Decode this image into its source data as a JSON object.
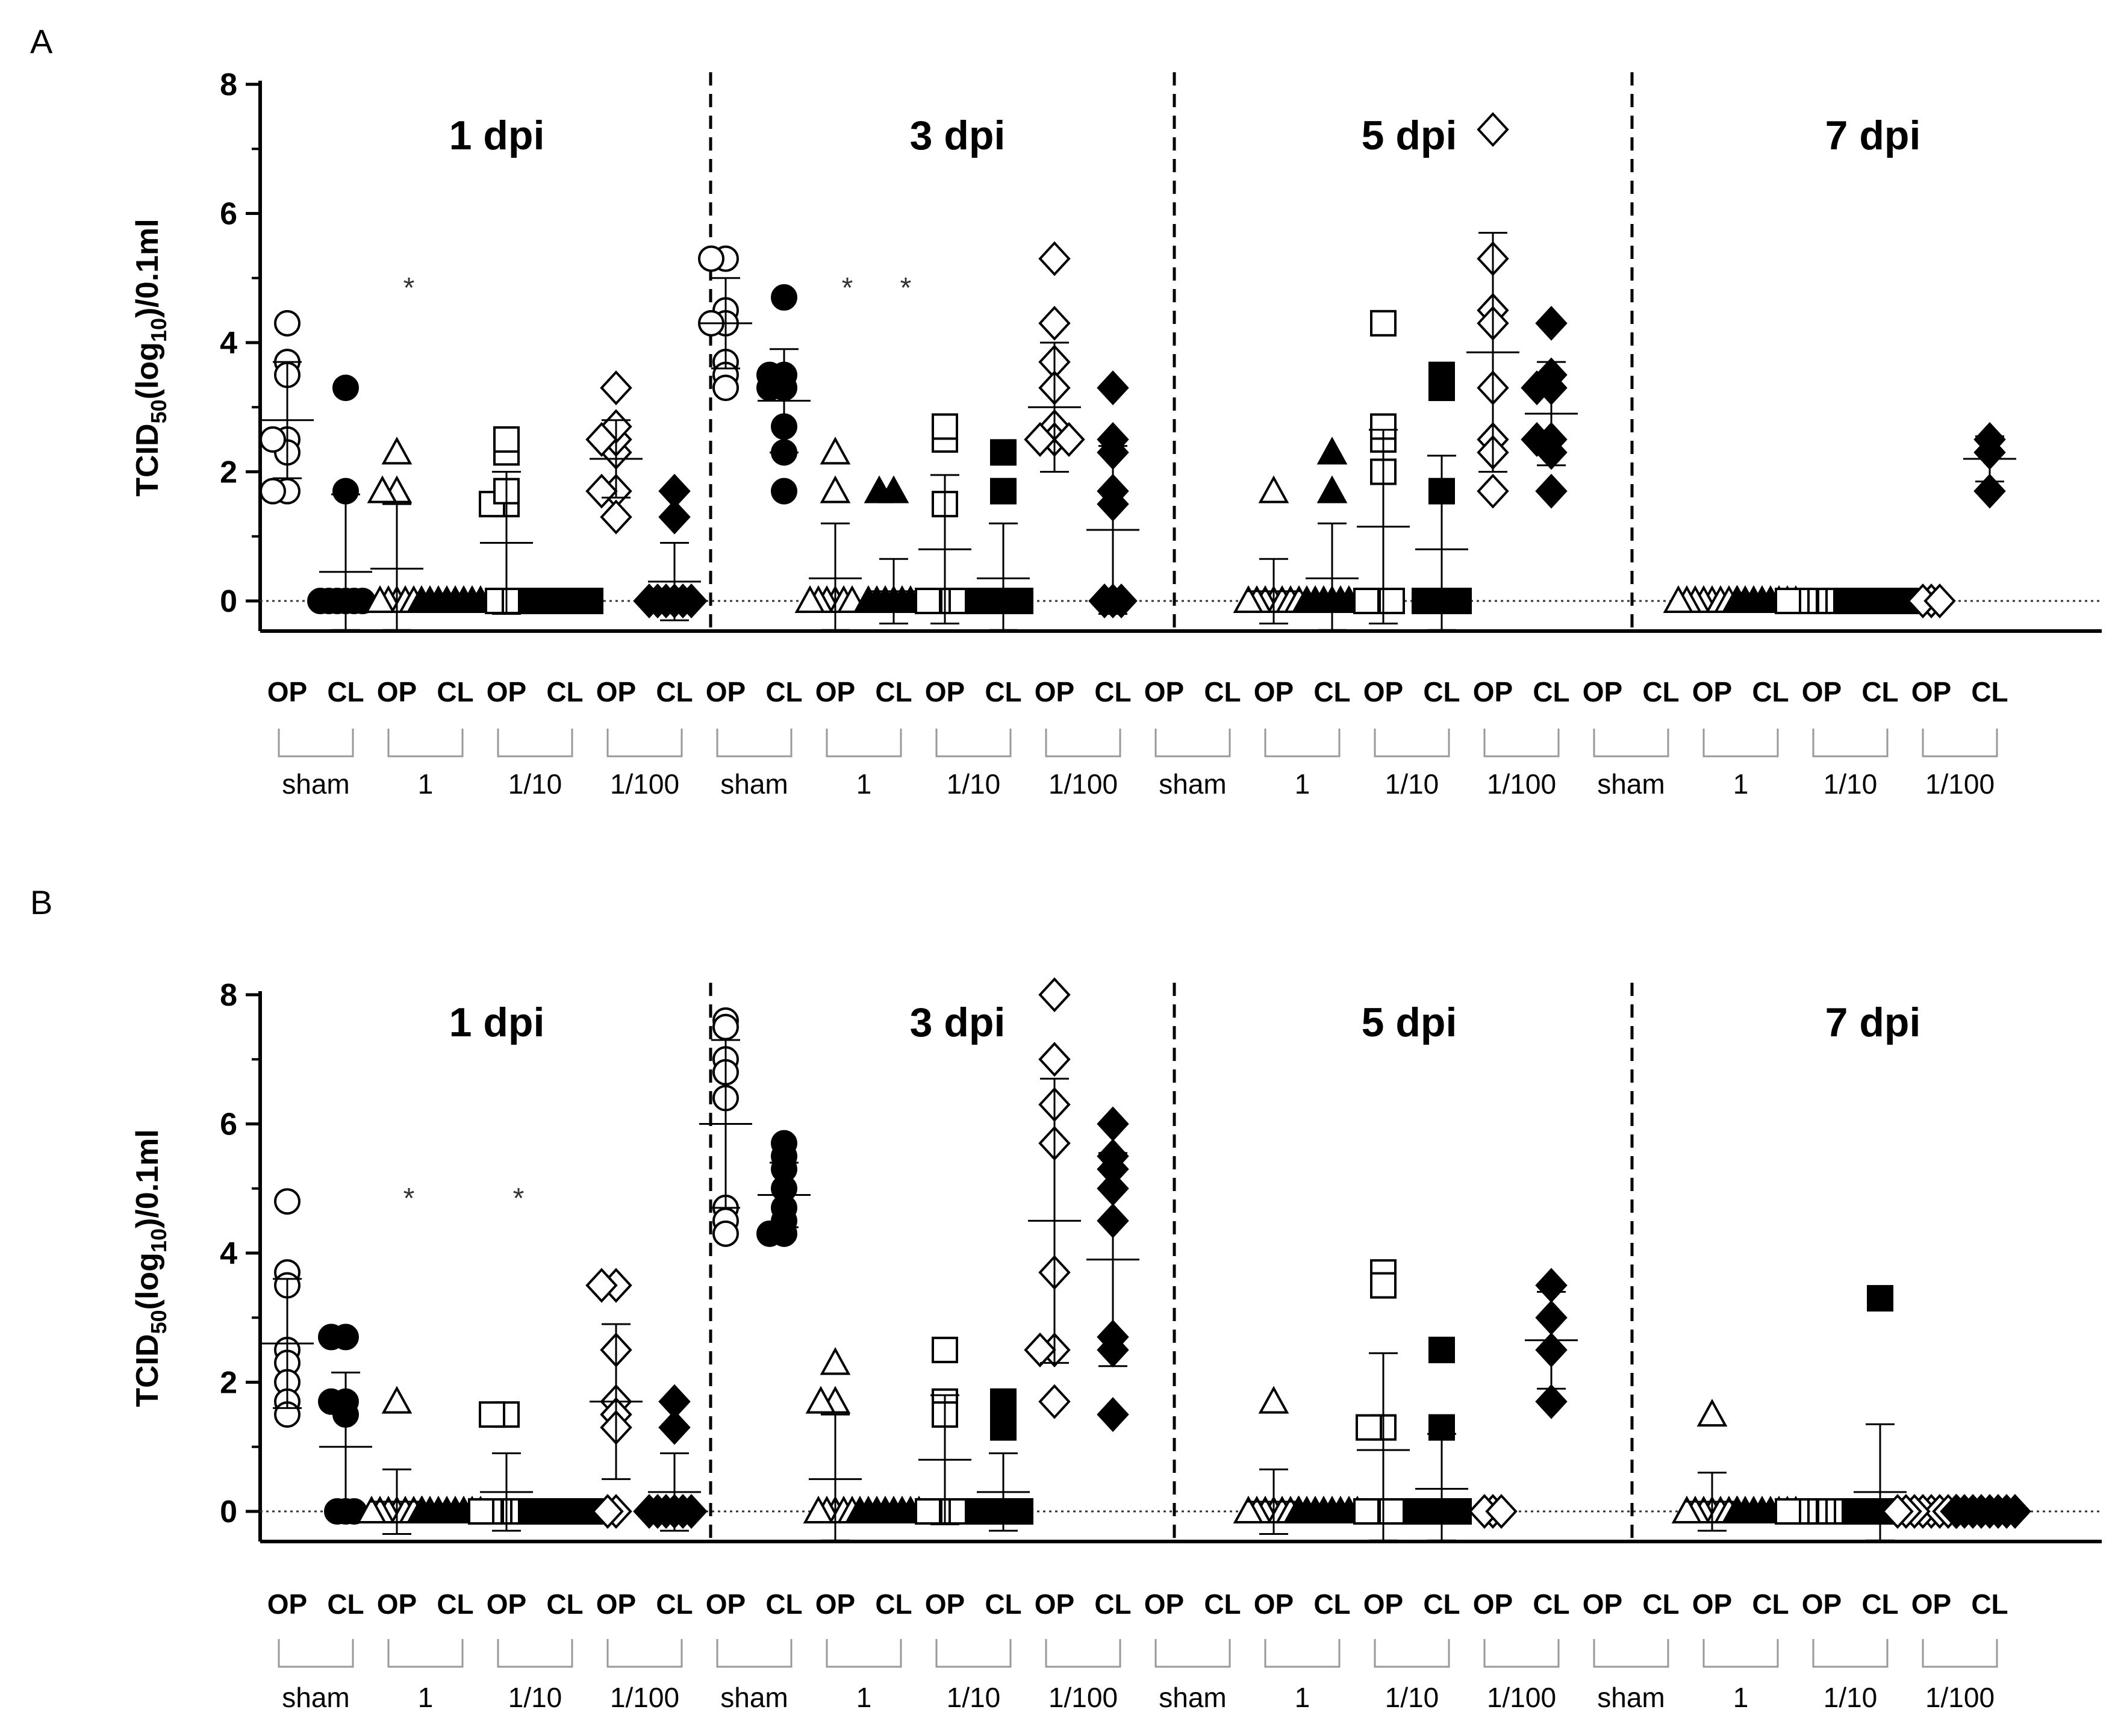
{
  "panels": [
    {
      "letter": "A",
      "ylabel": "TCID",
      "ylabel_sub": "50",
      "ylabel_mid": "(log",
      "ylabel_sub2": "10",
      "ylabel_end": ")/0.1ml"
    },
    {
      "letter": "B",
      "ylabel": "TCID",
      "ylabel_sub": "50",
      "ylabel_mid": "(log",
      "ylabel_sub2": "10",
      "ylabel_end": ")/0.1ml"
    }
  ],
  "chart_data": [
    {
      "type": "scatter",
      "panel": "A",
      "title": "",
      "ylabel": "TCID50(log10)/0.1ml",
      "ylim": [
        0,
        8
      ],
      "yticks": [
        "0",
        "2",
        "4",
        "6",
        "8"
      ],
      "timepoints": [
        "1 dpi",
        "3 dpi",
        "5 dpi",
        "7 dpi"
      ],
      "groups": [
        "sham",
        "1",
        "1/10",
        "1/100"
      ],
      "sample_labels": [
        "OP",
        "CL"
      ],
      "series": [
        {
          "name": "1 dpi sham OP",
          "values": [
            2.5,
            4.3,
            3.7,
            3.5,
            2.3,
            2.5,
            1.7,
            1.7
          ],
          "mean": 2.8,
          "sd": 0.9
        },
        {
          "name": "1 dpi sham CL",
          "values": [
            3.3,
            1.7,
            0,
            0,
            0,
            0,
            0,
            0
          ],
          "mean": 0.45,
          "sd": 1.2
        },
        {
          "name": "1 dpi 1 OP",
          "values": [
            2.3,
            1.7,
            1.7,
            0,
            0,
            0,
            0,
            0
          ],
          "mean": 0.5,
          "sd": 1.0,
          "marker": "*"
        },
        {
          "name": "1 dpi 1 CL",
          "values": [
            0,
            0,
            0,
            0,
            0,
            0,
            0,
            0
          ]
        },
        {
          "name": "1 dpi 1/10 OP",
          "values": [
            2.3,
            2.5,
            1.5,
            1.5,
            1.7,
            0,
            0,
            0
          ],
          "mean": 0.9,
          "sd": 1.1
        },
        {
          "name": "1 dpi 1/10 CL",
          "values": [
            0,
            0,
            0,
            0,
            0,
            0,
            0,
            0
          ]
        },
        {
          "name": "1 dpi 1/100 OP",
          "values": [
            2.3,
            2.5,
            3.3,
            2.7,
            2.5,
            1.7,
            1.7,
            1.3
          ],
          "mean": 2.2,
          "sd": 0.6
        },
        {
          "name": "1 dpi 1/100 CL",
          "values": [
            1.7,
            1.3,
            0,
            0,
            0,
            0,
            0,
            0
          ],
          "mean": 0.3,
          "sd": 0.6
        },
        {
          "name": "3 dpi sham OP",
          "values": [
            5.3,
            5.3,
            4.5,
            4.3,
            4.3,
            3.7,
            3.5,
            3.3
          ],
          "mean": 4.3,
          "sd": 0.7
        },
        {
          "name": "3 dpi sham CL",
          "values": [
            4.7,
            3.5,
            3.5,
            3.3,
            3.3,
            2.7,
            2.3,
            1.7
          ],
          "mean": 3.1,
          "sd": 0.8
        },
        {
          "name": "3 dpi 1 OP",
          "values": [
            2.3,
            1.7,
            0,
            0,
            0,
            0,
            0,
            0
          ],
          "mean": 0.35,
          "sd": 0.85,
          "marker": "*"
        },
        {
          "name": "3 dpi 1 CL",
          "values": [
            1.7,
            1.7,
            0,
            0,
            0,
            0,
            0,
            0
          ],
          "mean": 0.15,
          "sd": 0.5,
          "marker": "*"
        },
        {
          "name": "3 dpi 1/10 OP",
          "values": [
            2.5,
            2.7,
            1.5,
            0,
            0,
            0,
            0,
            0
          ],
          "mean": 0.8,
          "sd": 1.15
        },
        {
          "name": "3 dpi 1/10 CL",
          "values": [
            2.3,
            1.7,
            0,
            0,
            0,
            0,
            0,
            0
          ],
          "mean": 0.35,
          "sd": 0.85
        },
        {
          "name": "3 dpi 1/100 OP",
          "values": [
            5.3,
            4.3,
            3.7,
            3.3,
            2.7,
            2.5,
            2.5,
            2.5
          ],
          "mean": 3.0,
          "sd": 1.0
        },
        {
          "name": "3 dpi 1/100 CL",
          "values": [
            3.3,
            2.3,
            2.5,
            1.7,
            1.5,
            0,
            0,
            0
          ],
          "mean": 1.1,
          "sd": 1.3
        },
        {
          "name": "5 dpi sham OP",
          "values": []
        },
        {
          "name": "5 dpi sham CL",
          "values": []
        },
        {
          "name": "5 dpi 1 OP",
          "values": [
            1.7,
            0,
            0,
            0,
            0,
            0,
            0,
            0
          ],
          "mean": 0.15,
          "sd": 0.5
        },
        {
          "name": "5 dpi 1 CL",
          "values": [
            2.3,
            1.7,
            0,
            0,
            0,
            0,
            0,
            0
          ],
          "mean": 0.35,
          "sd": 0.85
        },
        {
          "name": "5 dpi 1/10 OP",
          "values": [
            2.5,
            4.3,
            2.7,
            2.0,
            0,
            0,
            0,
            0
          ],
          "mean": 1.15,
          "sd": 1.5
        },
        {
          "name": "5 dpi 1/10 CL",
          "values": [
            3.3,
            3.5,
            1.7,
            0,
            0,
            0,
            0,
            0
          ],
          "mean": 0.8,
          "sd": 1.45
        },
        {
          "name": "5 dpi 1/100 OP",
          "values": [
            7.3,
            5.3,
            4.5,
            4.3,
            3.3,
            2.5,
            2.3,
            1.7
          ],
          "mean": 3.85,
          "sd": 1.85
        },
        {
          "name": "5 dpi 1/100 CL",
          "values": [
            4.3,
            3.5,
            3.3,
            3.3,
            2.5,
            2.5,
            2.3,
            1.7
          ],
          "mean": 2.9,
          "sd": 0.8
        },
        {
          "name": "7 dpi sham OP",
          "values": []
        },
        {
          "name": "7 dpi sham CL",
          "values": []
        },
        {
          "name": "7 dpi 1 OP",
          "values": [
            0,
            0,
            0,
            0,
            0,
            0,
            0,
            0
          ]
        },
        {
          "name": "7 dpi 1 CL",
          "values": [
            0,
            0,
            0,
            0,
            0,
            0,
            0,
            0
          ]
        },
        {
          "name": "7 dpi 1/10 OP",
          "values": [
            0,
            0,
            0,
            0,
            0,
            0,
            0,
            0
          ]
        },
        {
          "name": "7 dpi 1/10 CL",
          "values": [
            0,
            0,
            0,
            0,
            0,
            0,
            0,
            0
          ]
        },
        {
          "name": "7 dpi 1/100 OP",
          "values": [
            0,
            0,
            0
          ]
        },
        {
          "name": "7 dpi 1/100 CL",
          "values": [
            2.5,
            2.3,
            1.7
          ],
          "mean": 2.2,
          "sd": 0.35
        }
      ]
    },
    {
      "type": "scatter",
      "panel": "B",
      "title": "",
      "ylabel": "TCID50(log10)/0.1ml",
      "ylim": [
        0,
        8
      ],
      "yticks": [
        "0",
        "2",
        "4",
        "6",
        "8"
      ],
      "timepoints": [
        "1 dpi",
        "3 dpi",
        "5 dpi",
        "7 dpi"
      ],
      "groups": [
        "sham",
        "1",
        "1/10",
        "1/100"
      ],
      "sample_labels": [
        "OP",
        "CL"
      ],
      "series": [
        {
          "name": "1 dpi sham OP",
          "values": [
            4.8,
            3.7,
            3.5,
            2.5,
            2.3,
            2.0,
            1.7,
            1.5
          ],
          "mean": 2.6,
          "sd": 1.0
        },
        {
          "name": "1 dpi sham CL",
          "values": [
            2.7,
            2.7,
            1.7,
            1.7,
            1.5,
            0,
            0,
            0
          ],
          "mean": 1.0,
          "sd": 1.15
        },
        {
          "name": "1 dpi 1 OP",
          "values": [
            1.7,
            0,
            0,
            0,
            0,
            0,
            0,
            0
          ],
          "mean": 0.15,
          "sd": 0.5,
          "marker": "*"
        },
        {
          "name": "1 dpi 1 CL",
          "values": [
            0,
            0,
            0,
            0,
            0,
            0,
            0,
            0
          ]
        },
        {
          "name": "1 dpi 1/10 OP",
          "values": [
            1.5,
            1.5,
            0,
            0,
            0,
            0,
            0,
            0
          ],
          "mean": 0.3,
          "sd": 0.6,
          "marker": "*"
        },
        {
          "name": "1 dpi 1/10 CL",
          "values": [
            0,
            0,
            0,
            0,
            0,
            0,
            0,
            0
          ]
        },
        {
          "name": "1 dpi 1/100 OP",
          "values": [
            3.5,
            3.5,
            2.5,
            1.7,
            1.5,
            1.3,
            0,
            0
          ],
          "mean": 1.7,
          "sd": 1.2
        },
        {
          "name": "1 dpi 1/100 CL",
          "values": [
            1.7,
            1.3,
            0,
            0,
            0,
            0,
            0,
            0
          ],
          "mean": 0.3,
          "sd": 0.6
        },
        {
          "name": "3 dpi sham OP",
          "values": [
            7.6,
            7.5,
            7.0,
            6.8,
            6.4,
            4.7,
            4.5,
            4.3
          ],
          "mean": 6.0,
          "sd": 1.3
        },
        {
          "name": "3 dpi sham CL",
          "values": [
            5.7,
            5.5,
            5.3,
            5.0,
            4.7,
            4.5,
            4.3,
            4.3
          ],
          "mean": 4.9,
          "sd": 0.5
        },
        {
          "name": "3 dpi 1 OP",
          "values": [
            2.3,
            1.7,
            1.7,
            0,
            0,
            0,
            0,
            0
          ],
          "mean": 0.5,
          "sd": 1.0
        },
        {
          "name": "3 dpi 1 CL",
          "values": [
            0,
            0,
            0,
            0,
            0,
            0,
            0,
            0
          ]
        },
        {
          "name": "3 dpi 1/10 OP",
          "values": [
            2.5,
            1.7,
            1.5,
            0,
            0,
            0,
            0,
            0
          ],
          "mean": 0.8,
          "sd": 1.0
        },
        {
          "name": "3 dpi 1/10 CL",
          "values": [
            1.7,
            1.3,
            0,
            0,
            0,
            0,
            0,
            0
          ],
          "mean": 0.3,
          "sd": 0.6
        },
        {
          "name": "3 dpi 1/100 OP",
          "values": [
            8.0,
            7.0,
            6.3,
            5.7,
            3.7,
            2.5,
            2.5,
            1.7
          ],
          "mean": 4.5,
          "sd": 2.2
        },
        {
          "name": "3 dpi 1/100 CL",
          "values": [
            6.0,
            5.5,
            5.3,
            5.0,
            4.5,
            2.7,
            2.5,
            1.5
          ],
          "mean": 3.9,
          "sd": 1.65
        },
        {
          "name": "5 dpi sham OP",
          "values": []
        },
        {
          "name": "5 dpi sham CL",
          "values": []
        },
        {
          "name": "5 dpi 1 OP",
          "values": [
            1.7,
            0,
            0,
            0,
            0,
            0,
            0,
            0
          ],
          "mean": 0.15,
          "sd": 0.5
        },
        {
          "name": "5 dpi 1 CL",
          "values": [
            0,
            0,
            0,
            0,
            0,
            0,
            0,
            0
          ]
        },
        {
          "name": "5 dpi 1/10 OP",
          "values": [
            3.7,
            3.5,
            1.3,
            1.3,
            0,
            0,
            0,
            0
          ],
          "mean": 0.95,
          "sd": 1.5
        },
        {
          "name": "5 dpi 1/10 CL",
          "values": [
            2.5,
            1.3,
            0,
            0,
            0,
            0,
            0,
            0
          ],
          "mean": 0.35,
          "sd": 0.85
        },
        {
          "name": "5 dpi 1/100 OP",
          "values": [
            0,
            0,
            0
          ]
        },
        {
          "name": "5 dpi 1/100 CL",
          "values": [
            3.5,
            3.0,
            2.5,
            1.7
          ],
          "mean": 2.65,
          "sd": 0.75
        },
        {
          "name": "7 dpi sham OP",
          "values": []
        },
        {
          "name": "7 dpi sham CL",
          "values": []
        },
        {
          "name": "7 dpi 1 OP",
          "values": [
            1.5,
            0,
            0,
            0,
            0,
            0,
            0,
            0
          ],
          "mean": 0.15,
          "sd": 0.45
        },
        {
          "name": "7 dpi 1 CL",
          "values": [
            0,
            0,
            0,
            0,
            0,
            0,
            0,
            0
          ]
        },
        {
          "name": "7 dpi 1/10 OP",
          "values": [
            0,
            0,
            0,
            0,
            0,
            0,
            0,
            0
          ]
        },
        {
          "name": "7 dpi 1/10 CL",
          "values": [
            3.3,
            0,
            0,
            0,
            0,
            0,
            0,
            0
          ],
          "mean": 0.3,
          "sd": 1.05
        },
        {
          "name": "7 dpi 1/100 OP",
          "values": [
            0,
            0,
            0,
            0,
            0,
            0,
            0,
            0
          ]
        },
        {
          "name": "7 dpi 1/100 CL",
          "values": [
            0,
            0,
            0,
            0,
            0,
            0,
            0,
            0
          ]
        }
      ]
    }
  ]
}
